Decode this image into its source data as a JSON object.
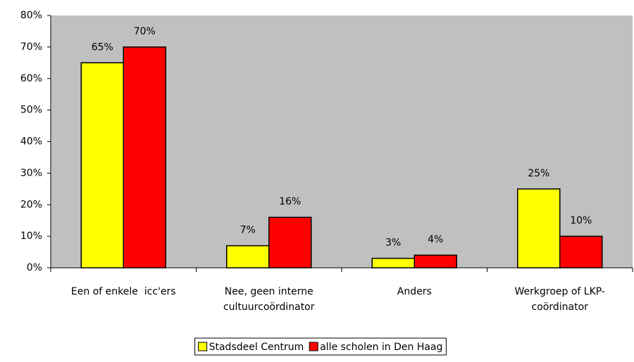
{
  "chart_data": {
    "type": "bar",
    "categories": [
      [
        "Een of enkele  icc'ers"
      ],
      [
        "Nee, geen interne",
        "cultuurcoördinator"
      ],
      [
        "Anders"
      ],
      [
        "Werkgroep of LKP-",
        "coördinator"
      ]
    ],
    "series": [
      {
        "name": "Stadsdeel Centrum",
        "color": "#ffff00",
        "values": [
          65,
          7,
          3,
          25
        ],
        "value_labels": [
          "65%",
          "7%",
          "3%",
          "25%"
        ]
      },
      {
        "name": "alle scholen in Den Haag",
        "color": "#ff0000",
        "values": [
          70,
          16,
          4,
          10
        ],
        "value_labels": [
          "70%",
          "16%",
          "4%",
          "10%"
        ]
      }
    ],
    "ylim": [
      0,
      80
    ],
    "yticks": [
      {
        "value": 0,
        "label": "0%"
      },
      {
        "value": 10,
        "label": "10%"
      },
      {
        "value": 20,
        "label": "20%"
      },
      {
        "value": 30,
        "label": "30%"
      },
      {
        "value": 40,
        "label": "40%"
      },
      {
        "value": 50,
        "label": "50%"
      },
      {
        "value": 60,
        "label": "60%"
      },
      {
        "value": 70,
        "label": "70%"
      },
      {
        "value": 80,
        "label": "80%"
      }
    ],
    "grid": false,
    "plot_background": "#c0c0c0",
    "legend": "bottom"
  }
}
